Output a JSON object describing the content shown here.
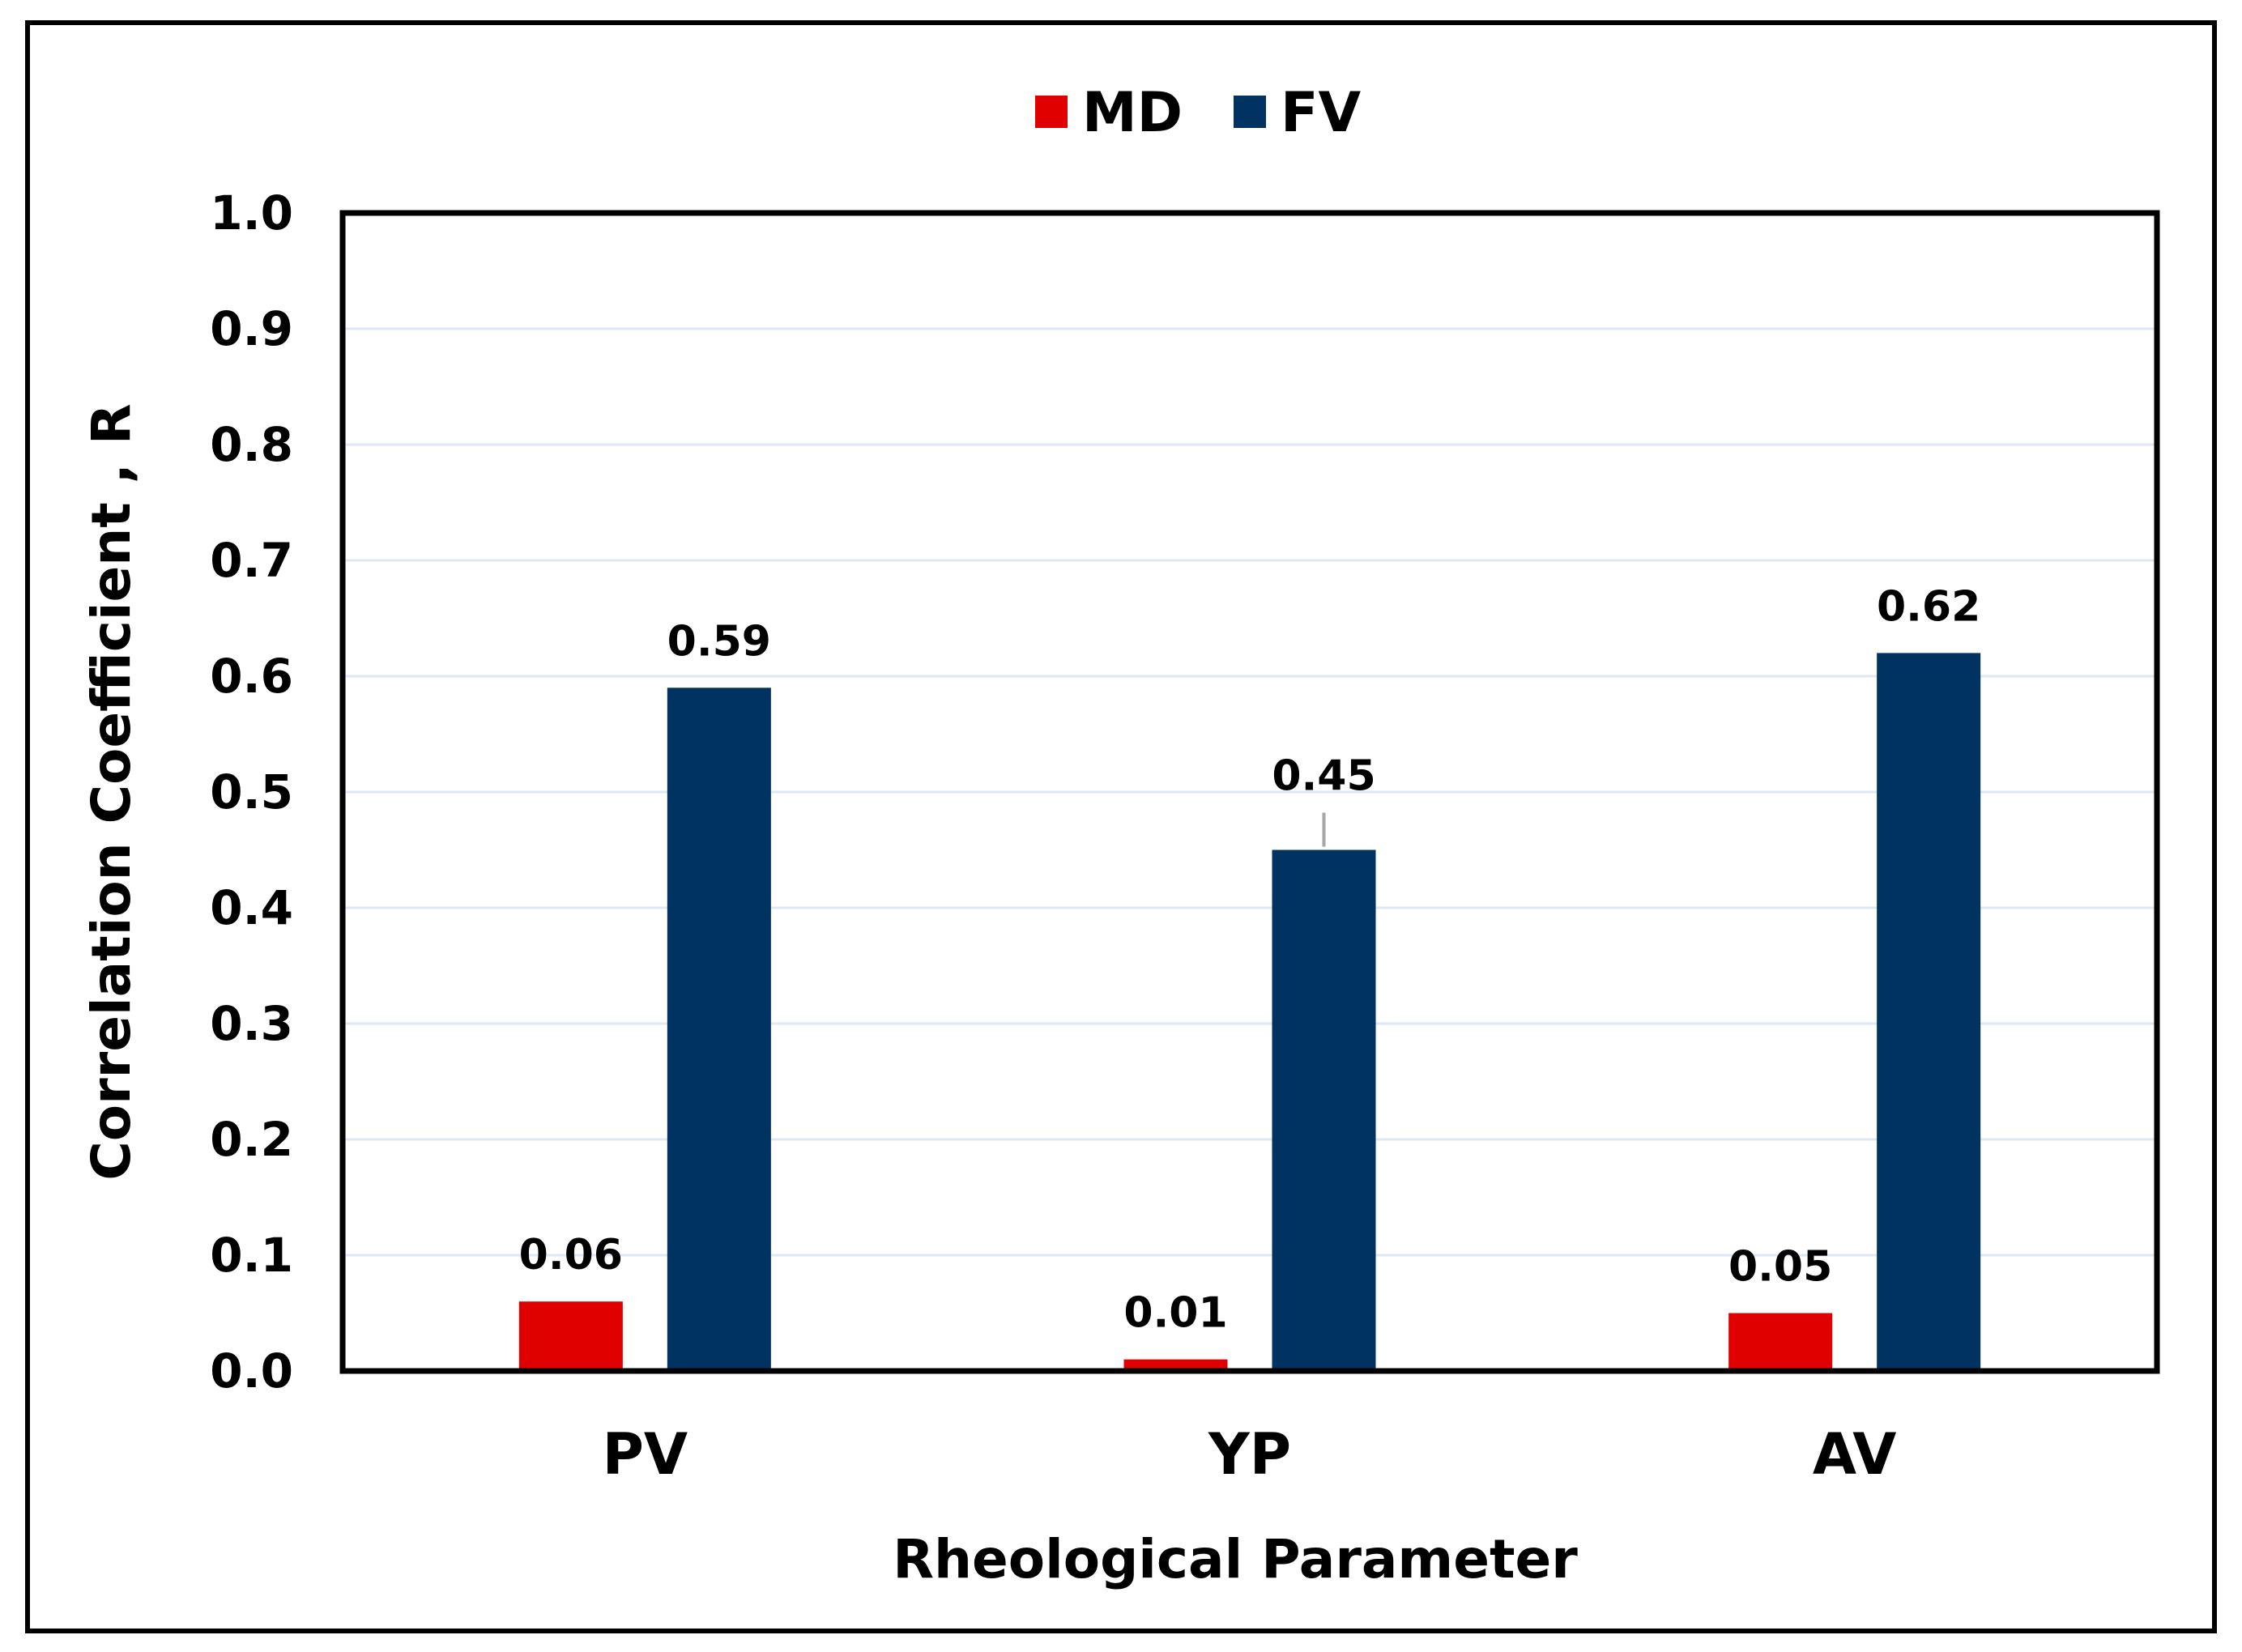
{
  "chart_data": {
    "type": "bar",
    "categories": [
      "PV",
      "YP",
      "AV"
    ],
    "series": [
      {
        "name": "MD",
        "color": "#e00000",
        "values": [
          0.06,
          0.01,
          0.05
        ]
      },
      {
        "name": "FV",
        "color": "#003361",
        "values": [
          0.59,
          0.45,
          0.62
        ]
      }
    ],
    "ylim": [
      0,
      1.0
    ],
    "yticks": [
      "0.0",
      "0.1",
      "0.2",
      "0.3",
      "0.4",
      "0.5",
      "0.6",
      "0.7",
      "0.8",
      "0.9",
      "1.0"
    ],
    "xlabel": "Rheological Parameter",
    "ylabel": "Correlation Coefficient , R",
    "grid": true,
    "legend": "top-center"
  }
}
